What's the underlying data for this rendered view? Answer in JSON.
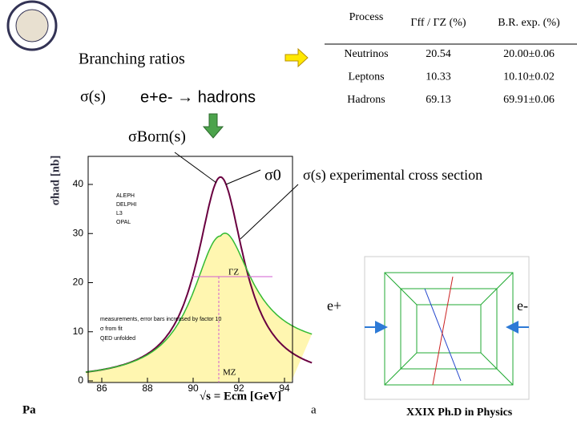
{
  "table": {
    "header": [
      "Process",
      "Γff / ΓZ (%)",
      "B.R. exp. (%)"
    ],
    "rows": [
      [
        "Neutrinos",
        "20.54",
        "20.00±0.06"
      ],
      [
        "Leptons",
        "10.33",
        "10.10±0.02"
      ],
      [
        "Hadrons",
        "69.13",
        "69.91±0.06"
      ]
    ]
  },
  "slide": {
    "branching": "Branching ratios",
    "sigma_s": "σ(s)",
    "process": "e+e- → hadrons",
    "sigma_born": "σBorn(s)",
    "sigma0": "σ0",
    "exp_xsec": "σ(s) experimental cross section",
    "eplus": "e+",
    "eminus": "e-",
    "footer_left": "Pa",
    "footer_mid": "a",
    "footer_right": "XXIX  Ph.D in Physics"
  },
  "plot": {
    "ylabel": "σhad [nb]",
    "xlabel": "√s = Ecm [GeV]",
    "xticks": [
      "86",
      "88",
      "90",
      "92",
      "94"
    ],
    "yticks": [
      "0",
      "10",
      "20",
      "30",
      "40"
    ],
    "legend": [
      "ALEPH",
      "DELPHI",
      "L3",
      "OPAL"
    ],
    "gamma": "ΓZ",
    "mz": "MZ",
    "notes": [
      "measurements, error bars increased by factor 10",
      "σ from fit",
      "QED unfolded"
    ]
  }
}
